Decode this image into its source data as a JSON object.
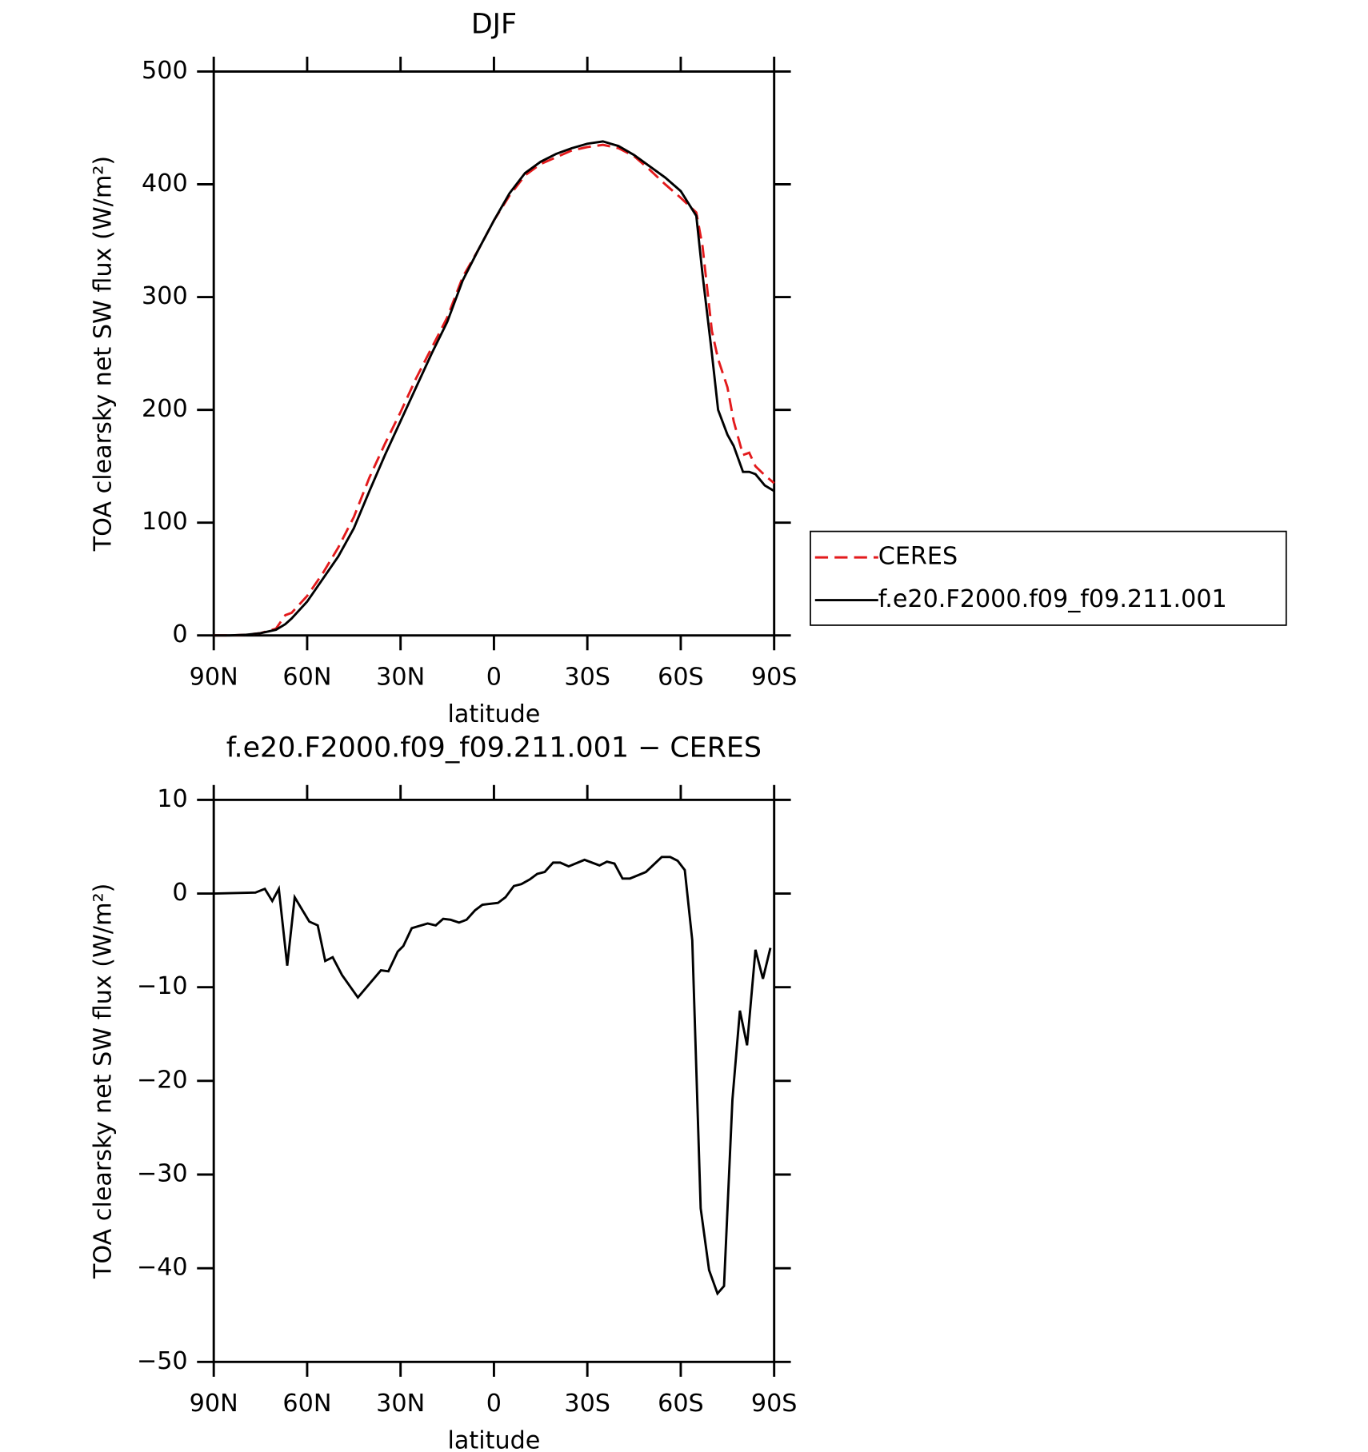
{
  "chart_data": [
    {
      "type": "line",
      "title": "DJF",
      "x_label": "latitude",
      "y_label": "TOA clearsky net SW flux (W/m²)",
      "x": [
        90,
        85,
        80,
        75,
        70,
        67,
        65,
        60,
        55,
        50,
        45,
        40,
        35,
        30,
        25,
        20,
        15,
        10,
        5,
        0,
        -5,
        -10,
        -15,
        -20,
        -25,
        -30,
        -35,
        -40,
        -45,
        -50,
        -55,
        -60,
        -65,
        -67,
        -70,
        -72,
        -75,
        -77,
        -80,
        -82,
        -84,
        -87,
        -90
      ],
      "series": [
        {
          "name": "CERES",
          "color": "#e31a1c",
          "dash": true,
          "values": [
            0,
            0,
            0.5,
            2,
            6,
            18,
            20,
            35,
            55,
            78,
            105,
            140,
            170,
            198,
            228,
            255,
            282,
            318,
            342,
            368,
            390,
            408,
            418,
            424,
            430,
            433,
            435,
            432,
            425,
            413,
            400,
            388,
            375,
            345,
            270,
            245,
            220,
            190,
            160,
            162,
            150,
            142,
            135
          ]
        },
        {
          "name": "f.e20.F2000.f09_f09.211.001",
          "color": "#000000",
          "dash": false,
          "values": [
            0,
            0,
            0.5,
            2,
            5,
            10,
            15,
            30,
            50,
            70,
            95,
            128,
            160,
            190,
            220,
            250,
            278,
            315,
            342,
            368,
            392,
            410,
            420,
            427,
            432,
            436,
            438,
            434,
            426,
            416,
            406,
            394,
            372,
            320,
            250,
            200,
            178,
            168,
            145,
            145,
            143,
            133,
            128
          ]
        }
      ],
      "xlim": [
        90,
        -90
      ],
      "xticks": [
        {
          "value": 90,
          "label": "90N"
        },
        {
          "value": 60,
          "label": "60N"
        },
        {
          "value": 30,
          "label": "30N"
        },
        0,
        {
          "value": -30,
          "label": "30S"
        },
        {
          "value": -60,
          "label": "60S"
        },
        {
          "value": -90,
          "label": "90S"
        }
      ],
      "ylim": [
        0,
        500
      ],
      "yticks": [
        0,
        100,
        200,
        300,
        400,
        500
      ],
      "legend": "right"
    },
    {
      "type": "line",
      "title": "f.e20.F2000.f09_f09.211.001 − CERES",
      "x_label": "latitude",
      "y_label": "TOA clearsky net SW flux (W/m²)",
      "x": [
        90,
        76.6,
        73.6,
        71.2,
        69.1,
        66.4,
        64,
        59.3,
        56.6,
        54.2,
        51.8,
        48.8,
        43.7,
        36.3,
        33.9,
        30.9,
        29.1,
        26.4,
        21.3,
        18.7,
        16.3,
        13.9,
        11.2,
        8.8,
        6.1,
        3.7,
        -1.3,
        -3.7,
        -6.4,
        -8.8,
        -11.5,
        -13.9,
        -16.3,
        -19,
        -21.3,
        -24,
        -29.1,
        -33.9,
        -36.3,
        -38.7,
        -41.3,
        -43.7,
        -48.8,
        -53.9,
        -56.6,
        -59,
        -61.3,
        -63.7,
        -66.4,
        -69.1,
        -71.8,
        -73.9,
        -76.6,
        -79,
        -81.3,
        -84,
        -86.4,
        -88.8
      ],
      "series": [
        {
          "name": "f.e20.F2000.f09_f09.211.001 − CERES",
          "color": "#000000",
          "dash": false,
          "values": [
            0,
            0.1,
            0.5,
            -0.8,
            0.5,
            -7.7,
            -0.4,
            -3,
            -3.4,
            -7.2,
            -6.8,
            -8.7,
            -11.1,
            -8.2,
            -8.3,
            -6.2,
            -5.6,
            -3.7,
            -3.2,
            -3.4,
            -2.7,
            -2.8,
            -3.1,
            -2.8,
            -1.8,
            -1.2,
            -1,
            -0.4,
            0.8,
            1,
            1.5,
            2.1,
            2.3,
            3.3,
            3.3,
            2.9,
            3.6,
            3,
            3.4,
            3.2,
            1.6,
            1.6,
            2.3,
            3.9,
            3.9,
            3.5,
            2.5,
            -5,
            -33.6,
            -40.2,
            -42.7,
            -41.9,
            -22,
            -12.5,
            -16.2,
            -6,
            -9.1,
            -5.8
          ]
        }
      ],
      "xlim": [
        90,
        -90
      ],
      "xticks": [
        {
          "value": 90,
          "label": "90N"
        },
        {
          "value": 60,
          "label": "60N"
        },
        {
          "value": 30,
          "label": "30N"
        },
        0,
        {
          "value": -30,
          "label": "30S"
        },
        {
          "value": -60,
          "label": "60S"
        },
        {
          "value": -90,
          "label": "90S"
        }
      ],
      "ylim": [
        -50,
        10
      ],
      "yticks": [
        {
          "value": -50,
          "label": "−50"
        },
        {
          "value": -40,
          "label": "−40"
        },
        {
          "value": -30,
          "label": "−30"
        },
        {
          "value": -20,
          "label": "−20"
        },
        {
          "value": -10,
          "label": "−10"
        },
        0,
        10
      ]
    }
  ]
}
